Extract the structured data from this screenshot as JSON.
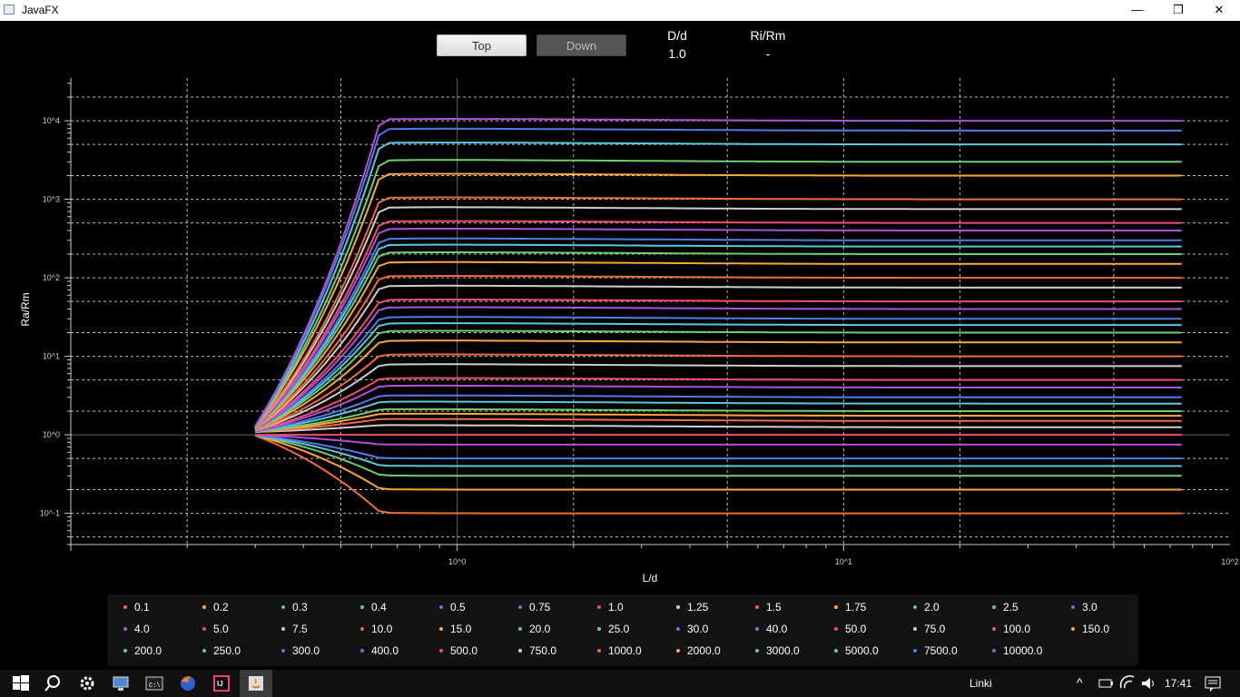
{
  "window": {
    "title": "JavaFX",
    "minimize": "—",
    "maximize": "❒",
    "close": "✕"
  },
  "toolbar": {
    "top_label": "Top",
    "down_label": "Down",
    "dd_label": "D/d",
    "dd_value": "1.0",
    "rirm_label": "Ri/Rm",
    "rirm_value": "-"
  },
  "chart_data": {
    "type": "line",
    "xlabel": "L/d",
    "ylabel": "Ra/Rm",
    "x_scale": "log",
    "y_scale": "log",
    "xlim": [
      0.1,
      100
    ],
    "ylim": [
      0.04,
      35000
    ],
    "x_ticks": [
      "10^0",
      "10^1",
      "10^2"
    ],
    "y_ticks": [
      "10^-1",
      "10^0",
      "10^1",
      "10^2",
      "10^3",
      "10^4"
    ],
    "grid": true,
    "legend_position": "bottom",
    "x_start": 0.3,
    "x_end": 75,
    "series": [
      {
        "name": "0.1",
        "color": "#f26b3a",
        "end": 0.1
      },
      {
        "name": "0.2",
        "color": "#ffa53a",
        "end": 0.2
      },
      {
        "name": "0.3",
        "color": "#6ccf6c",
        "end": 0.3
      },
      {
        "name": "0.4",
        "color": "#5ac8dc",
        "end": 0.4
      },
      {
        "name": "0.5",
        "color": "#4f7ce6",
        "end": 0.5
      },
      {
        "name": "0.75",
        "color": "#b050dc",
        "end": 0.75
      },
      {
        "name": "1.0",
        "color": "#f24d6a",
        "end": 1.0
      },
      {
        "name": "1.25",
        "color": "#cfcfcf",
        "end": 1.25
      },
      {
        "name": "1.5",
        "color": "#f26b3a",
        "end": 1.5
      },
      {
        "name": "1.75",
        "color": "#ffa53a",
        "end": 1.75
      },
      {
        "name": "2.0",
        "color": "#6ccf6c",
        "end": 2.0
      },
      {
        "name": "2.5",
        "color": "#5ac8dc",
        "end": 2.5
      },
      {
        "name": "3.0",
        "color": "#4f7ce6",
        "end": 3.0
      },
      {
        "name": "4.0",
        "color": "#b050dc",
        "end": 4.0
      },
      {
        "name": "5.0",
        "color": "#f24d6a",
        "end": 5.0
      },
      {
        "name": "7.5",
        "color": "#cfcfcf",
        "end": 7.5
      },
      {
        "name": "10.0",
        "color": "#f26b3a",
        "end": 10.0
      },
      {
        "name": "15.0",
        "color": "#ffa53a",
        "end": 15.0
      },
      {
        "name": "20.0",
        "color": "#6ccf6c",
        "end": 20.0
      },
      {
        "name": "25.0",
        "color": "#5ac8dc",
        "end": 25.0
      },
      {
        "name": "30.0",
        "color": "#4f7ce6",
        "end": 30.0
      },
      {
        "name": "40.0",
        "color": "#b050dc",
        "end": 40.0
      },
      {
        "name": "50.0",
        "color": "#f24d6a",
        "end": 50.0
      },
      {
        "name": "75.0",
        "color": "#cfcfcf",
        "end": 75.0
      },
      {
        "name": "100.0",
        "color": "#f26b3a",
        "end": 100.0
      },
      {
        "name": "150.0",
        "color": "#ffa53a",
        "end": 150.0
      },
      {
        "name": "200.0",
        "color": "#6ccf6c",
        "end": 200.0
      },
      {
        "name": "250.0",
        "color": "#5ac8dc",
        "end": 250.0
      },
      {
        "name": "300.0",
        "color": "#4f7ce6",
        "end": 300.0
      },
      {
        "name": "400.0",
        "color": "#b050dc",
        "end": 400.0
      },
      {
        "name": "500.0",
        "color": "#f24d6a",
        "end": 500.0
      },
      {
        "name": "750.0",
        "color": "#cfcfcf",
        "end": 750.0
      },
      {
        "name": "1000.0",
        "color": "#f26b3a",
        "end": 1000.0
      },
      {
        "name": "2000.0",
        "color": "#ffa53a",
        "end": 2000.0
      },
      {
        "name": "3000.0",
        "color": "#6ccf6c",
        "end": 3000.0
      },
      {
        "name": "5000.0",
        "color": "#5ac8dc",
        "end": 5000.0
      },
      {
        "name": "7500.0",
        "color": "#4f7ce6",
        "end": 7500.0
      },
      {
        "name": "10000.0",
        "color": "#b050dc",
        "end": 10000.0
      }
    ]
  },
  "taskbar": {
    "links_label": "Linki",
    "clock": "17:41"
  }
}
